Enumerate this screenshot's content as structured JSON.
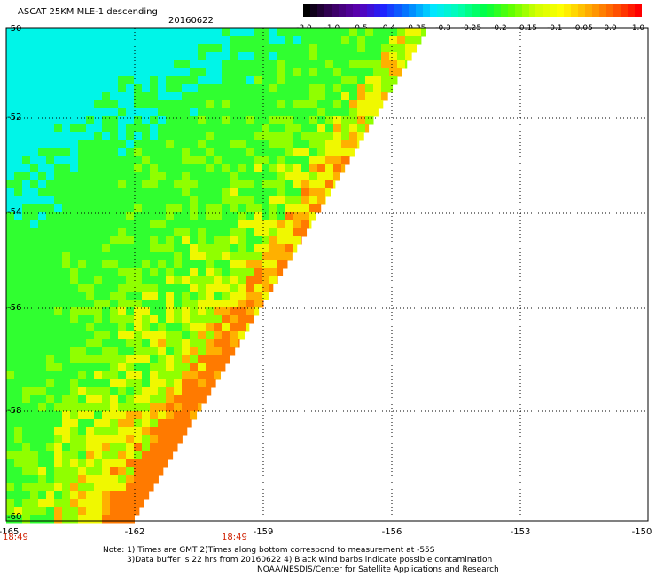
{
  "title": "ASCAT 25KM MLE-1 descending",
  "date": "20160622",
  "colorbar": {
    "labels": [
      "-3.0",
      "-1.0",
      "-0.5",
      "-0.4",
      "-0.35",
      "-0.3",
      "-0.25",
      "-0.2",
      "-0.15",
      "-0.1",
      "-0.05",
      "0.0",
      "1.0"
    ],
    "colors": [
      "#000000",
      "#3a0060",
      "#5a00b0",
      "#2020ff",
      "#0080ff",
      "#00e8ff",
      "#00ffb0",
      "#00ff40",
      "#60ff00",
      "#d0ff00",
      "#ffff00",
      "#ffb000",
      "#ff6000",
      "#ff0000"
    ]
  },
  "y_axis": {
    "labels": [
      "-50",
      "-52",
      "-54",
      "-56",
      "-58",
      "-60"
    ]
  },
  "x_axis": {
    "labels": [
      "-165",
      "-162",
      "-159",
      "-156",
      "-153",
      "-150"
    ]
  },
  "times": [
    "18:49",
    "18:49"
  ],
  "notes": [
    "Note: 1) Times are GMT 2)Times along bottom correspond to measurement at -55S",
    "3)Data buffer is 22 hrs from 20160622 4) Black wind barbs indicate possible contamination",
    "NOAA/NESDIS/Center for Satellite Applications and Research"
  ],
  "swath_colors": {
    "cyan": "#00f5e8",
    "green": "#30ff30",
    "lime": "#90ff00",
    "yellow": "#f0f800",
    "orange": "#ffb000",
    "red_orange": "#ff7a00"
  }
}
